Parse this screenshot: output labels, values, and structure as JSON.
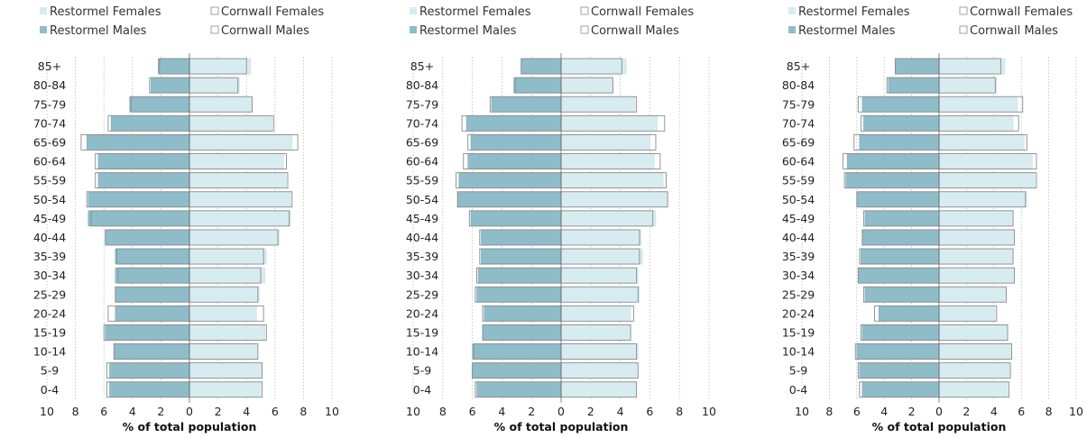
{
  "colors": {
    "restormel_female": "#d7ecf1",
    "restormel_male": "#8fbcc9",
    "cornwall_outline": "#8a8a8a",
    "grid": "#bdbdbd",
    "axis": "#666666"
  },
  "chart_data": [
    {
      "type": "bar",
      "orientation": "horizontal",
      "pyramid": true,
      "title": "",
      "xlabel": "% of total population",
      "ylabel": "",
      "xlim": [
        -10,
        10
      ],
      "x_ticks": [
        "10",
        "8",
        "6",
        "4",
        "2",
        "0",
        "2",
        "4",
        "6",
        "8",
        "10"
      ],
      "grid": true,
      "legend_position": "top",
      "legend": [
        "Restormel Females",
        "Cornwall Females",
        "Restormel Males",
        "Cornwall Males"
      ],
      "categories": [
        "85+",
        "80-84",
        "75-79",
        "70-74",
        "65-69",
        "60-64",
        "55-59",
        "50-54",
        "45-49",
        "40-44",
        "35-39",
        "30-34",
        "25-29",
        "20-24",
        "15-19",
        "10-14",
        "5-9",
        "0-4"
      ],
      "series": [
        {
          "name": "Restormel Females",
          "values": [
            4.3,
            3.5,
            4.4,
            5.8,
            7.2,
            6.6,
            6.8,
            7.1,
            7.1,
            6.3,
            5.4,
            5.3,
            4.9,
            4.7,
            5.3,
            4.8,
            5.1,
            5.0
          ]
        },
        {
          "name": "Cornwall Females",
          "values": [
            4.0,
            3.4,
            4.4,
            5.9,
            7.6,
            6.8,
            6.9,
            7.2,
            7.0,
            6.2,
            5.2,
            5.0,
            4.8,
            5.2,
            5.4,
            4.8,
            5.1,
            5.1
          ]
        },
        {
          "name": "Restormel Males",
          "values": [
            2.2,
            2.7,
            4.2,
            5.5,
            7.2,
            6.4,
            6.4,
            7.1,
            7.1,
            5.9,
            5.2,
            5.2,
            5.2,
            5.2,
            5.9,
            5.3,
            5.6,
            5.6
          ]
        },
        {
          "name": "Cornwall Males",
          "values": [
            2.1,
            2.8,
            4.1,
            5.7,
            7.6,
            6.6,
            6.6,
            7.2,
            6.9,
            5.9,
            5.1,
            5.0,
            5.2,
            5.7,
            6.0,
            5.3,
            5.8,
            5.8
          ]
        }
      ]
    },
    {
      "type": "bar",
      "orientation": "horizontal",
      "pyramid": true,
      "title": "",
      "xlabel": "% of total population",
      "ylabel": "",
      "xlim": [
        -10,
        10
      ],
      "x_ticks": [
        "10",
        "8",
        "6",
        "4",
        "2",
        "0",
        "2",
        "4",
        "6",
        "8",
        "10"
      ],
      "grid": true,
      "legend_position": "top",
      "legend": [
        "Restormel Females",
        "Cornwall Females",
        "Restormel Males",
        "Cornwall Males"
      ],
      "categories": [
        "85+",
        "80-84",
        "75-79",
        "70-74",
        "65-69",
        "60-64",
        "55-59",
        "50-54",
        "45-49",
        "40-44",
        "35-39",
        "30-34",
        "25-29",
        "20-24",
        "15-19",
        "10-14",
        "5-9",
        "0-4"
      ],
      "series": [
        {
          "name": "Restormel Females",
          "values": [
            4.4,
            3.5,
            5.0,
            6.5,
            6.0,
            6.3,
            6.9,
            7.2,
            6.4,
            5.4,
            5.5,
            5.2,
            5.3,
            4.7,
            4.7,
            5.2,
            5.2,
            5.1
          ]
        },
        {
          "name": "Cornwall Females",
          "values": [
            4.1,
            3.5,
            5.1,
            7.0,
            6.4,
            6.7,
            7.1,
            7.2,
            6.2,
            5.3,
            5.3,
            5.1,
            5.2,
            4.9,
            4.7,
            5.1,
            5.2,
            5.1
          ]
        },
        {
          "name": "Restormel Males",
          "values": [
            2.7,
            3.2,
            4.7,
            6.4,
            6.1,
            6.3,
            6.9,
            7.0,
            6.1,
            5.4,
            5.4,
            5.6,
            5.7,
            5.2,
            5.3,
            6.0,
            6.0,
            5.7
          ]
        },
        {
          "name": "Cornwall Males",
          "values": [
            2.7,
            3.1,
            4.8,
            6.7,
            6.3,
            6.6,
            7.1,
            7.0,
            6.2,
            5.5,
            5.5,
            5.7,
            5.8,
            5.3,
            5.3,
            5.9,
            6.0,
            5.8
          ]
        }
      ]
    },
    {
      "type": "bar",
      "orientation": "horizontal",
      "pyramid": true,
      "title": "",
      "xlabel": "% of total population",
      "ylabel": "",
      "xlim": [
        -10,
        10
      ],
      "x_ticks": [
        "10",
        "8",
        "6",
        "4",
        "2",
        "0",
        "2",
        "4",
        "6",
        "8",
        "10"
      ],
      "grid": true,
      "legend_position": "top",
      "legend": [
        "Restormel Females",
        "Cornwall Females",
        "Restormel Males",
        "Cornwall Males"
      ],
      "categories": [
        "85+",
        "80-84",
        "75-79",
        "70-74",
        "65-69",
        "60-64",
        "55-59",
        "50-54",
        "45-49",
        "40-44",
        "35-39",
        "30-34",
        "25-29",
        "20-24",
        "15-19",
        "10-14",
        "5-9",
        "0-4"
      ],
      "series": [
        {
          "name": "Restormel Females",
          "values": [
            4.8,
            4.2,
            5.7,
            5.4,
            6.2,
            6.8,
            7.0,
            6.4,
            5.4,
            5.5,
            5.4,
            5.5,
            4.9,
            4.1,
            5.0,
            5.3,
            5.2,
            5.0
          ]
        },
        {
          "name": "Cornwall Females",
          "values": [
            4.5,
            4.1,
            6.1,
            5.8,
            6.4,
            7.1,
            7.1,
            6.3,
            5.4,
            5.5,
            5.4,
            5.5,
            4.9,
            4.2,
            5.0,
            5.3,
            5.2,
            5.1
          ]
        },
        {
          "name": "Restormel Males",
          "values": [
            3.2,
            3.7,
            5.6,
            5.5,
            5.8,
            6.7,
            6.8,
            6.0,
            5.4,
            5.6,
            5.7,
            5.9,
            5.4,
            4.4,
            5.6,
            6.0,
            5.8,
            5.6
          ]
        },
        {
          "name": "Cornwall Males",
          "values": [
            3.2,
            3.8,
            5.9,
            5.7,
            6.2,
            7.0,
            6.9,
            6.0,
            5.5,
            5.6,
            5.8,
            5.9,
            5.5,
            4.7,
            5.7,
            6.1,
            5.9,
            5.8
          ]
        }
      ]
    }
  ]
}
